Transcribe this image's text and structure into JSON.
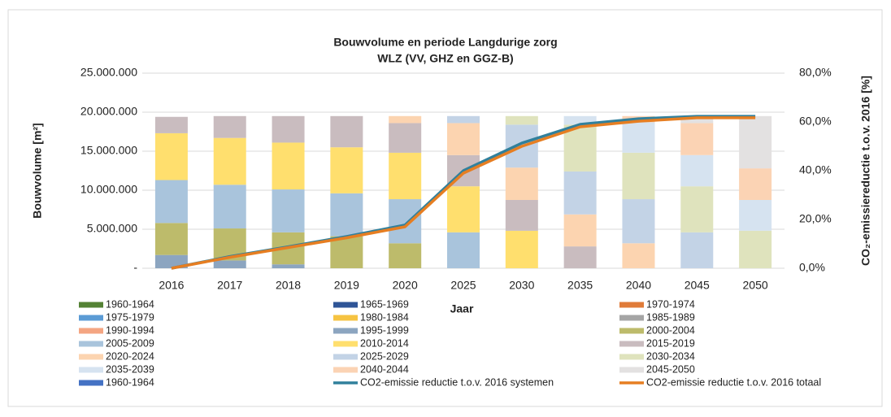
{
  "chart_data": {
    "type": "stacked_bar_line",
    "title": "Bouwvolume en periode Langdurige zorg",
    "subtitle": "WLZ (VV, GHZ en GGZ-B)",
    "x_label": "Jaar",
    "y_label": "Bouwvolume [m²]",
    "y2_label": "CO₂-emissiereductie t.o.v. 2016 [%]",
    "categories": [
      "2016",
      "2017",
      "2018",
      "2019",
      "2020",
      "2025",
      "2030",
      "2035",
      "2040",
      "2045",
      "2050"
    ],
    "ylim": [
      0,
      25000000
    ],
    "yticks": [
      {
        "value": 0,
        "label": "-"
      },
      {
        "value": 5000000,
        "label": "5.000.000"
      },
      {
        "value": 10000000,
        "label": "10.000.000"
      },
      {
        "value": 15000000,
        "label": "15.000.000"
      },
      {
        "value": 20000000,
        "label": "20.000.000"
      },
      {
        "value": 25000000,
        "label": "25.000.000"
      }
    ],
    "y2lim": [
      0,
      80
    ],
    "y2ticks": [
      {
        "value": 0,
        "label": "0,0%"
      },
      {
        "value": 20,
        "label": "20,0%"
      },
      {
        "value": 40,
        "label": "40,0%"
      },
      {
        "value": 60,
        "label": "60,0%"
      },
      {
        "value": 80,
        "label": "80,0%"
      }
    ],
    "grid": true,
    "legend": "bottom",
    "series": [
      {
        "name": "1960-1964",
        "color": "#548235",
        "values": [
          0,
          0,
          0,
          0,
          0,
          0,
          0,
          0,
          0,
          0,
          0
        ]
      },
      {
        "name": "1965-1969",
        "color": "#2f5597",
        "values": [
          0,
          0,
          0,
          0,
          0,
          0,
          0,
          0,
          0,
          0,
          0
        ]
      },
      {
        "name": "1970-1974",
        "color": "#e07b39",
        "values": [
          0,
          0,
          0,
          0,
          0,
          0,
          0,
          0,
          0,
          0,
          0
        ]
      },
      {
        "name": "1975-1979",
        "color": "#5b9bd5",
        "values": [
          0,
          0,
          0,
          0,
          0,
          0,
          0,
          0,
          0,
          0,
          0
        ]
      },
      {
        "name": "1980-1984",
        "color": "#f6c342",
        "values": [
          0,
          0,
          0,
          0,
          0,
          0,
          0,
          0,
          0,
          0,
          0
        ]
      },
      {
        "name": "1985-1989",
        "color": "#a5a5a5",
        "values": [
          0,
          0,
          0,
          0,
          0,
          0,
          0,
          0,
          0,
          0,
          0
        ]
      },
      {
        "name": "1990-1994",
        "color": "#f4a582",
        "values": [
          0,
          0,
          0,
          0,
          0,
          0,
          0,
          0,
          0,
          0,
          0
        ]
      },
      {
        "name": "1995-1999",
        "color": "#8ca5c0",
        "values": [
          1700000,
          1000000,
          500000,
          0,
          0,
          0,
          0,
          0,
          0,
          0,
          0
        ]
      },
      {
        "name": "2000-2004",
        "color": "#bdbb6b",
        "values": [
          4100000,
          4100000,
          4100000,
          4100000,
          3200000,
          0,
          0,
          0,
          0,
          0,
          0
        ]
      },
      {
        "name": "2005-2009",
        "color": "#a9c4dc",
        "values": [
          5500000,
          5600000,
          5500000,
          5500000,
          5650000,
          4600000,
          0,
          0,
          0,
          0,
          0
        ]
      },
      {
        "name": "2010-2014",
        "color": "#ffdf6e",
        "values": [
          6000000,
          6000000,
          6000000,
          5900000,
          5950000,
          5900000,
          4800000,
          0,
          0,
          0,
          0
        ]
      },
      {
        "name": "2015-2019",
        "color": "#c9bcbf",
        "values": [
          2100000,
          2800000,
          3400000,
          4000000,
          3800000,
          4000000,
          3950000,
          2800000,
          0,
          0,
          0
        ]
      },
      {
        "name": "2020-2024",
        "color": "#fcd4b0",
        "values": [
          0,
          0,
          0,
          0,
          900000,
          4100000,
          4150000,
          4100000,
          3200000,
          0,
          0
        ]
      },
      {
        "name": "2025-2029",
        "color": "#c3d3e6",
        "values": [
          0,
          0,
          0,
          0,
          0,
          900000,
          5500000,
          5500000,
          5650000,
          4600000,
          0
        ]
      },
      {
        "name": "2030-2034",
        "color": "#dfe3bd",
        "values": [
          0,
          0,
          0,
          0,
          0,
          0,
          1100000,
          6000000,
          5950000,
          5900000,
          4800000
        ]
      },
      {
        "name": "2035-2039",
        "color": "#d6e3f0",
        "values": [
          0,
          0,
          0,
          0,
          0,
          0,
          0,
          1100000,
          3900000,
          4000000,
          3950000
        ]
      },
      {
        "name": "2040-2044",
        "color": "#fbd3b4",
        "values": [
          0,
          0,
          0,
          0,
          0,
          0,
          0,
          0,
          800000,
          4100000,
          4050000
        ]
      },
      {
        "name": "2045-2050",
        "color": "#e3e1e1",
        "values": [
          0,
          0,
          0,
          0,
          0,
          0,
          0,
          0,
          0,
          900000,
          6700000
        ]
      },
      {
        "name": "1960-1964",
        "color": "#4472c4",
        "values": [
          0,
          0,
          0,
          0,
          0,
          0,
          0,
          0,
          0,
          0,
          0
        ]
      },
      {
        "name": "CO2-emissie reductie t.o.v. 2016 systemen",
        "color": "#31809c",
        "axis": "y2",
        "values": [
          0,
          4.8,
          8.8,
          13,
          17.7,
          40,
          51.3,
          59,
          61.3,
          62.3,
          62.3
        ]
      },
      {
        "name": "CO2-emissie reductie t.o.v. 2016 totaal",
        "color": "#e67e22",
        "axis": "y2",
        "values": [
          0,
          4.5,
          8.5,
          12.5,
          17,
          39,
          50,
          58,
          60.3,
          61.7,
          61.7
        ]
      }
    ]
  }
}
